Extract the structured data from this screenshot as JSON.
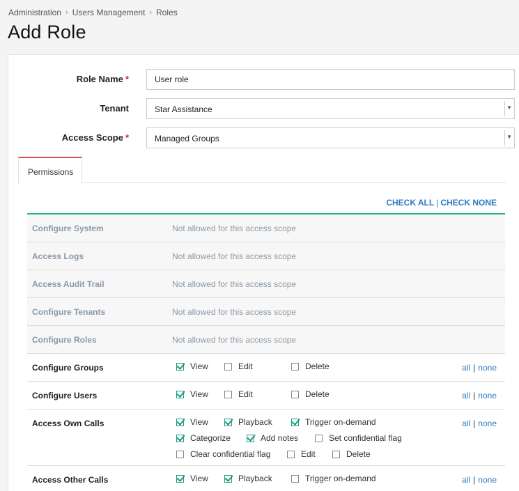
{
  "breadcrumb": [
    "Administration",
    "Users Management",
    "Roles"
  ],
  "page_title": "Add Role",
  "form": {
    "role_name": {
      "label": "Role Name",
      "required": "*",
      "value": "User role"
    },
    "tenant": {
      "label": "Tenant",
      "value": "Star Assistance"
    },
    "access_scope": {
      "label": "Access Scope",
      "required": "*",
      "value": "Managed Groups"
    }
  },
  "tabs": {
    "permissions": "Permissions"
  },
  "check_links": {
    "check_all": "CHECK ALL",
    "separator": "|",
    "check_none": "CHECK NONE"
  },
  "disabled_note": "Not allowed for this access scope",
  "row_links": {
    "all": "all",
    "separator": "|",
    "none": "none"
  },
  "permissions": [
    {
      "name": "Configure System",
      "enabled": false
    },
    {
      "name": "Access Logs",
      "enabled": false
    },
    {
      "name": "Access Audit Trail",
      "enabled": false
    },
    {
      "name": "Configure Tenants",
      "enabled": false
    },
    {
      "name": "Configure Roles",
      "enabled": false
    },
    {
      "name": "Configure Groups",
      "enabled": true,
      "options": [
        {
          "label": "View",
          "checked": true
        },
        {
          "label": "Edit",
          "checked": false
        },
        {
          "label": "Delete",
          "checked": false
        }
      ]
    },
    {
      "name": "Configure Users",
      "enabled": true,
      "options": [
        {
          "label": "View",
          "checked": true
        },
        {
          "label": "Edit",
          "checked": false
        },
        {
          "label": "Delete",
          "checked": false
        }
      ]
    },
    {
      "name": "Access Own Calls",
      "enabled": true,
      "options": [
        {
          "label": "View",
          "checked": true
        },
        {
          "label": "Playback",
          "checked": true
        },
        {
          "label": "Trigger on-demand",
          "checked": true
        },
        {
          "label": "Categorize",
          "checked": true
        },
        {
          "label": "Add notes",
          "checked": true
        },
        {
          "label": "Set confidential flag",
          "checked": false
        },
        {
          "label": "Clear confidential flag",
          "checked": false
        },
        {
          "label": "Edit",
          "checked": false
        },
        {
          "label": "Delete",
          "checked": false
        }
      ]
    },
    {
      "name": "Access Other Calls",
      "enabled": true,
      "options": [
        {
          "label": "View",
          "checked": true
        },
        {
          "label": "Playback",
          "checked": true
        },
        {
          "label": "Trigger on-demand",
          "checked": false
        }
      ]
    }
  ],
  "colors": {
    "accent_green": "#27b48c",
    "link_blue": "#2d7ac0",
    "tab_red": "#d9534f",
    "required_red": "#d0282e"
  }
}
